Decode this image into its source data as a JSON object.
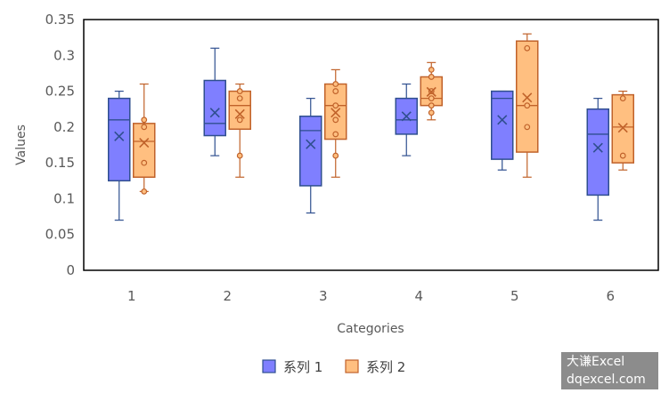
{
  "chart_data": {
    "type": "box",
    "title": "",
    "xlabel": "Categories",
    "ylabel": "Values",
    "ylim": [
      0,
      0.35
    ],
    "yticks": [
      "0",
      "0.05",
      "0.1",
      "0.15",
      "0.2",
      "0.25",
      "0.3",
      "0.35"
    ],
    "categories": [
      "1",
      "2",
      "3",
      "4",
      "5",
      "6"
    ],
    "legend_position": "bottom",
    "grid": false,
    "series": [
      {
        "name": "系列 1",
        "color": "#7f7fff",
        "stroke": "#2f4f8f",
        "boxes": [
          {
            "min": 0.07,
            "q1": 0.125,
            "median": 0.21,
            "q3": 0.24,
            "max": 0.25,
            "mean": 0.187,
            "points": []
          },
          {
            "min": 0.16,
            "q1": 0.188,
            "median": 0.205,
            "q3": 0.265,
            "max": 0.31,
            "mean": 0.22,
            "points": []
          },
          {
            "min": 0.08,
            "q1": 0.118,
            "median": 0.195,
            "q3": 0.215,
            "max": 0.24,
            "mean": 0.176,
            "points": []
          },
          {
            "min": 0.16,
            "q1": 0.19,
            "median": 0.21,
            "q3": 0.24,
            "max": 0.26,
            "mean": 0.215,
            "points": []
          },
          {
            "min": 0.14,
            "q1": 0.155,
            "median": 0.24,
            "q3": 0.25,
            "max": 0.25,
            "mean": 0.21,
            "points": []
          },
          {
            "min": 0.07,
            "q1": 0.105,
            "median": 0.19,
            "q3": 0.225,
            "max": 0.24,
            "mean": 0.171,
            "points": []
          }
        ]
      },
      {
        "name": "系列 2",
        "color": "#ffbf80",
        "stroke": "#c0622a",
        "boxes": [
          {
            "min": 0.11,
            "q1": 0.13,
            "median": 0.18,
            "q3": 0.205,
            "max": 0.26,
            "mean": 0.178,
            "points": [
              0.11,
              0.15,
              0.2,
              0.21
            ]
          },
          {
            "min": 0.13,
            "q1": 0.197,
            "median": 0.23,
            "q3": 0.25,
            "max": 0.26,
            "mean": 0.218,
            "points": [
              0.16,
              0.21,
              0.24,
              0.25
            ]
          },
          {
            "min": 0.13,
            "q1": 0.183,
            "median": 0.23,
            "q3": 0.26,
            "max": 0.28,
            "mean": 0.22,
            "points": [
              0.16,
              0.19,
              0.21,
              0.23,
              0.25,
              0.26
            ]
          },
          {
            "min": 0.21,
            "q1": 0.23,
            "median": 0.24,
            "q3": 0.27,
            "max": 0.29,
            "mean": 0.249,
            "points": [
              0.22,
              0.23,
              0.24,
              0.25,
              0.27,
              0.28
            ]
          },
          {
            "min": 0.13,
            "q1": 0.165,
            "median": 0.23,
            "q3": 0.32,
            "max": 0.33,
            "mean": 0.241,
            "points": [
              0.2,
              0.23,
              0.31
            ]
          },
          {
            "min": 0.14,
            "q1": 0.15,
            "median": 0.2,
            "q3": 0.245,
            "max": 0.25,
            "mean": 0.199,
            "points": [
              0.16,
              0.24
            ]
          }
        ]
      }
    ]
  },
  "watermark": {
    "line1": "大谦Excel",
    "line2": "dqexcel.com"
  }
}
